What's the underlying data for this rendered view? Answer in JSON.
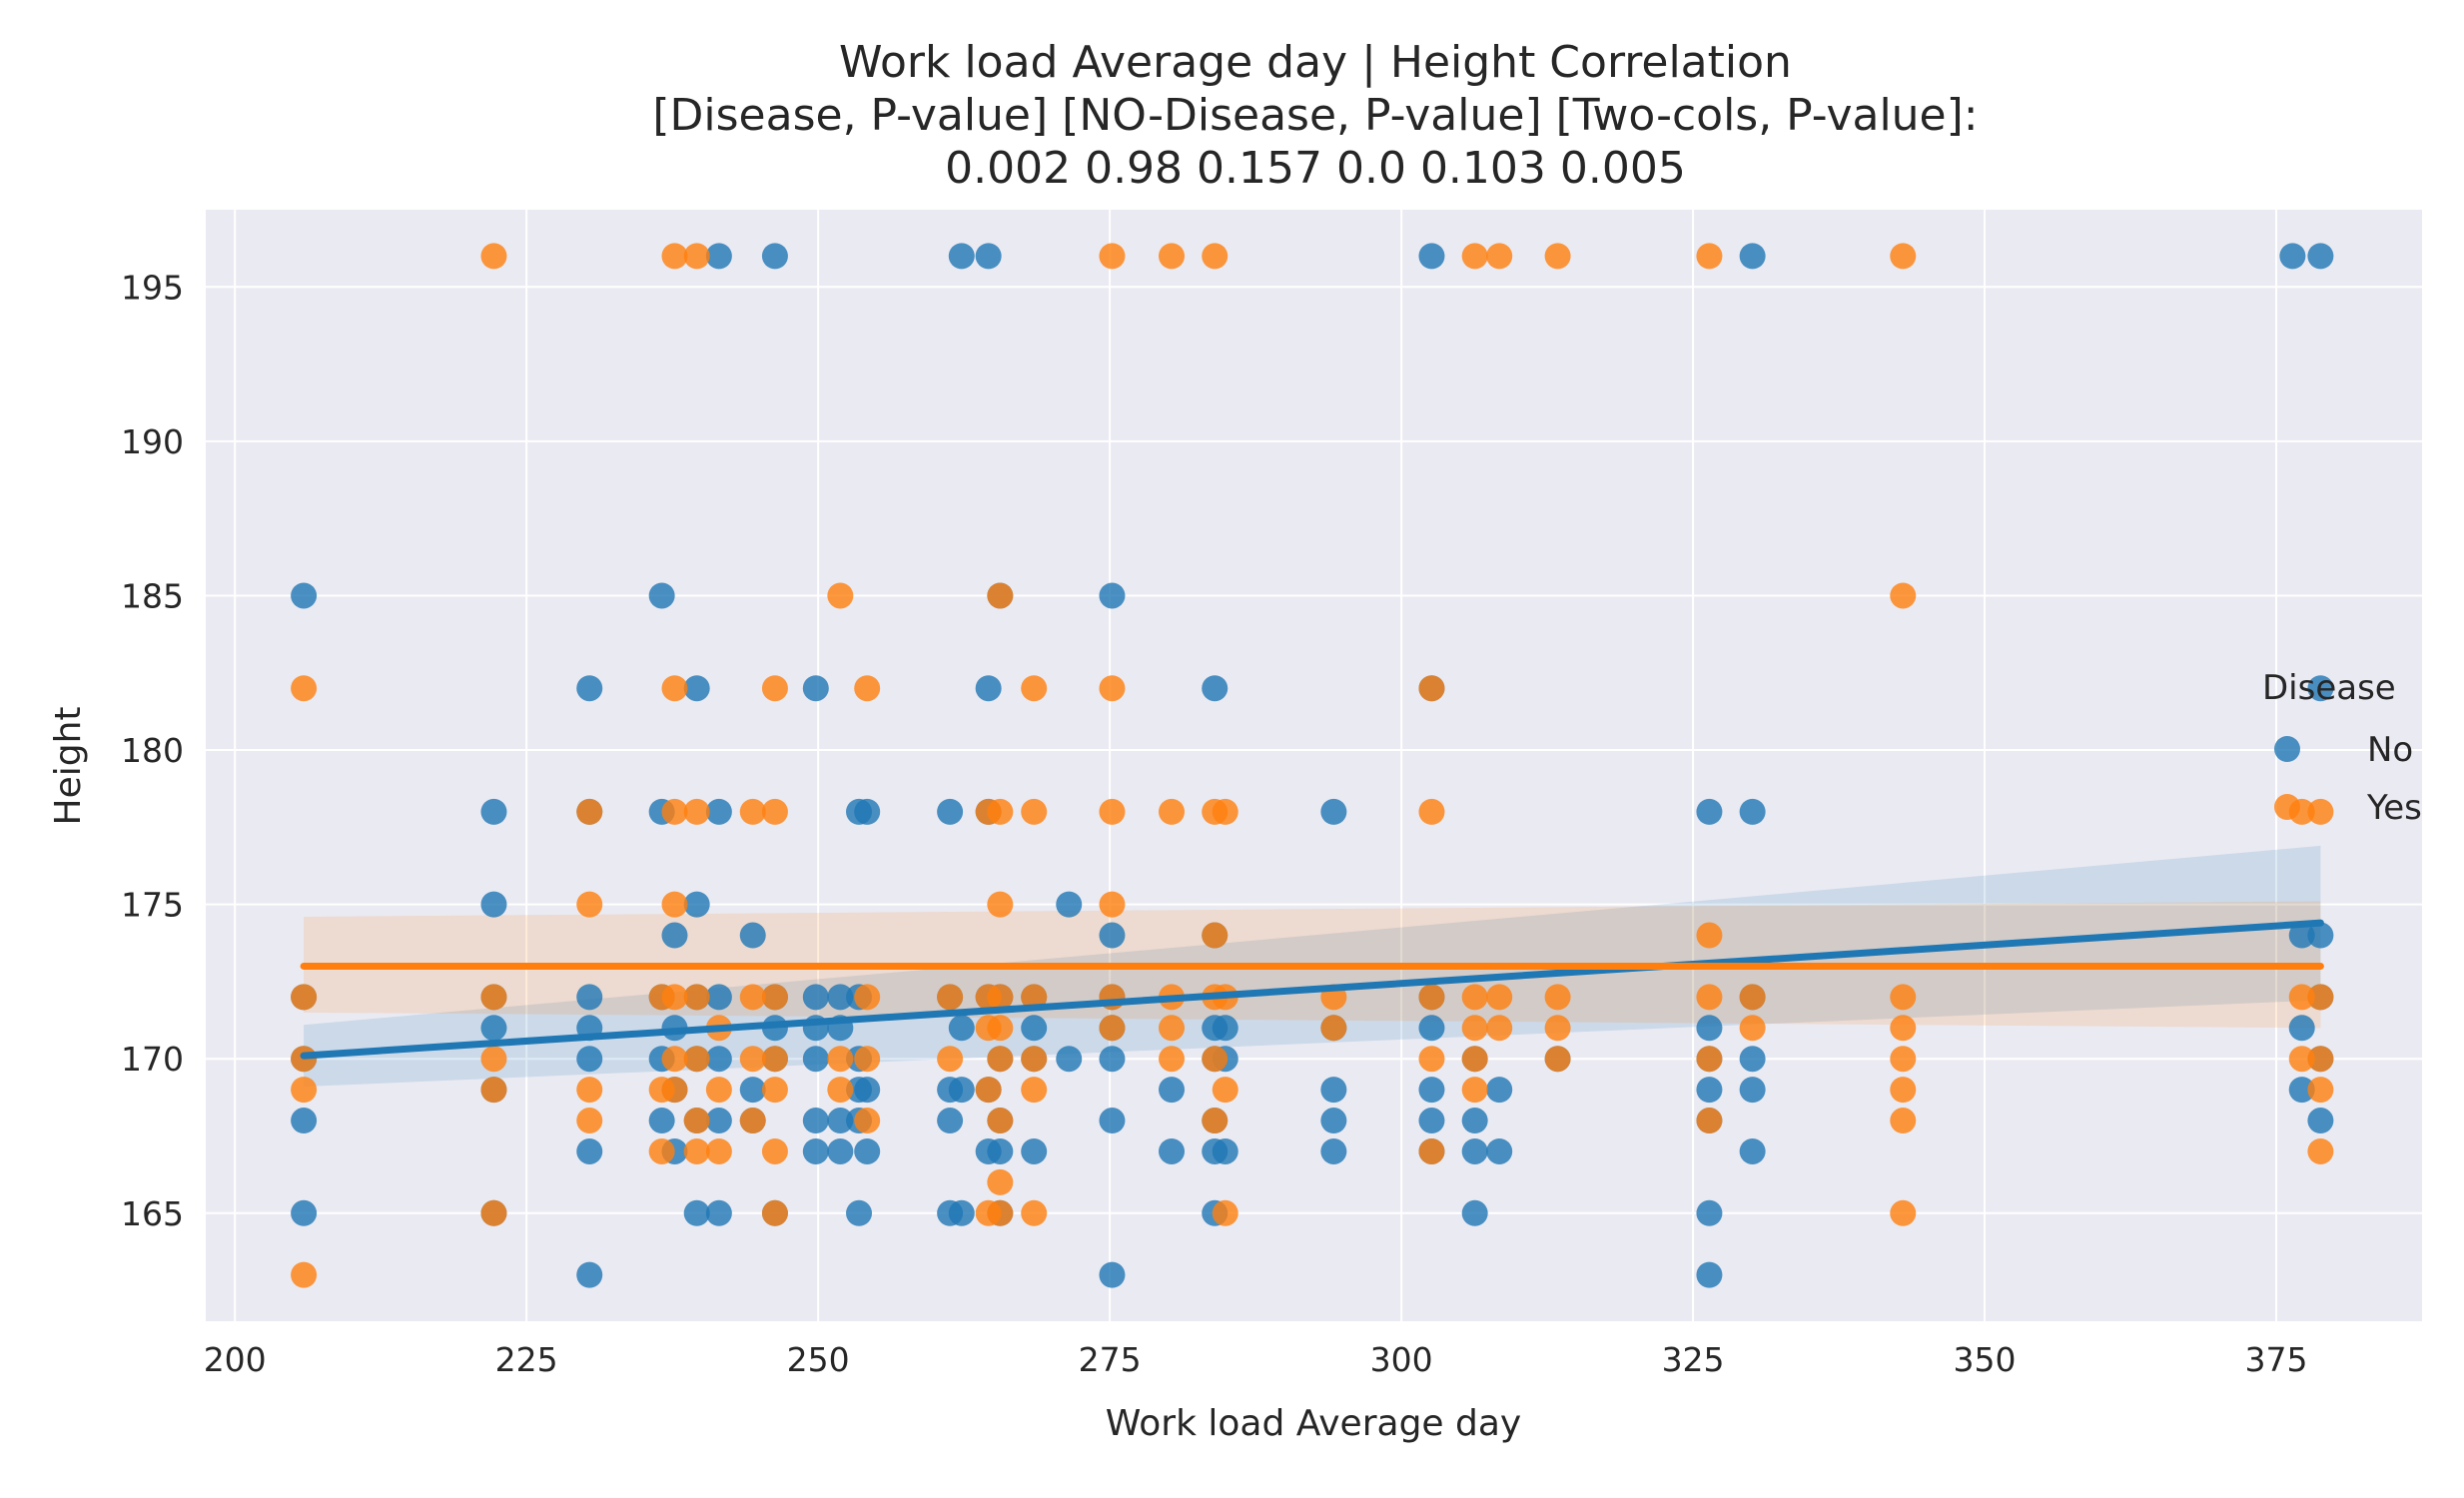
{
  "chart_data": {
    "type": "scatter",
    "title_lines": [
      "Work load Average day | Height    Correlation",
      "[Disease,        P-value]    [NO-Disease,      P-value]   [Two-cols,  P-value]:",
      "0.002                 0.98                 0.157                  0.0             0.103             0.005"
    ],
    "xlabel": "Work load Average day",
    "ylabel": "Height",
    "xlim": [
      197.5,
      387.5
    ],
    "ylim": [
      161.5,
      197.5
    ],
    "xticks": [
      200,
      225,
      250,
      275,
      300,
      325,
      350,
      375
    ],
    "yticks": [
      165,
      170,
      175,
      180,
      185,
      190,
      195
    ],
    "grid": true,
    "legend": {
      "title": "Disease",
      "position": "right",
      "entries": [
        "No",
        "Yes"
      ]
    },
    "colors": {
      "No": "#1f77b4",
      "Yes": "#ff7f0e",
      "background": "#eaeaf2",
      "grid": "#ffffff"
    },
    "series": [
      {
        "name": "No",
        "color": "#1f77b4",
        "points": [
          [
            205.9,
            185
          ],
          [
            205.9,
            172
          ],
          [
            205.9,
            170
          ],
          [
            205.9,
            168
          ],
          [
            205.9,
            165
          ],
          [
            222.2,
            178
          ],
          [
            222.2,
            175
          ],
          [
            222.2,
            172
          ],
          [
            222.2,
            171
          ],
          [
            222.2,
            169
          ],
          [
            222.2,
            165
          ],
          [
            230.4,
            182
          ],
          [
            230.4,
            178
          ],
          [
            230.4,
            172
          ],
          [
            230.4,
            171
          ],
          [
            230.4,
            170
          ],
          [
            230.4,
            167
          ],
          [
            230.4,
            163
          ],
          [
            236.6,
            185
          ],
          [
            236.6,
            178
          ],
          [
            236.6,
            172
          ],
          [
            236.6,
            170
          ],
          [
            236.6,
            168
          ],
          [
            237.7,
            174
          ],
          [
            237.7,
            171
          ],
          [
            237.7,
            169
          ],
          [
            237.7,
            167
          ],
          [
            239.6,
            182
          ],
          [
            239.6,
            175
          ],
          [
            239.6,
            172
          ],
          [
            239.6,
            170
          ],
          [
            239.6,
            168
          ],
          [
            239.6,
            165
          ],
          [
            241.5,
            196
          ],
          [
            241.5,
            178
          ],
          [
            241.5,
            172
          ],
          [
            241.5,
            170
          ],
          [
            241.5,
            168
          ],
          [
            241.5,
            165
          ],
          [
            244.4,
            174
          ],
          [
            244.4,
            169
          ],
          [
            244.4,
            168
          ],
          [
            246.3,
            196
          ],
          [
            246.3,
            172
          ],
          [
            246.3,
            171
          ],
          [
            246.3,
            170
          ],
          [
            246.3,
            165
          ],
          [
            249.8,
            182
          ],
          [
            249.8,
            172
          ],
          [
            249.8,
            171
          ],
          [
            249.8,
            170
          ],
          [
            249.8,
            168
          ],
          [
            249.8,
            167
          ],
          [
            251.9,
            172
          ],
          [
            251.9,
            171
          ],
          [
            251.9,
            168
          ],
          [
            251.9,
            167
          ],
          [
            253.5,
            178
          ],
          [
            253.5,
            172
          ],
          [
            253.5,
            170
          ],
          [
            253.5,
            169
          ],
          [
            253.5,
            168
          ],
          [
            253.5,
            165
          ],
          [
            254.2,
            178
          ],
          [
            254.2,
            169
          ],
          [
            254.2,
            167
          ],
          [
            261.3,
            178
          ],
          [
            261.3,
            172
          ],
          [
            261.3,
            169
          ],
          [
            261.3,
            168
          ],
          [
            261.3,
            165
          ],
          [
            262.3,
            196
          ],
          [
            262.3,
            171
          ],
          [
            262.3,
            169
          ],
          [
            262.3,
            165
          ],
          [
            264.6,
            196
          ],
          [
            264.6,
            182
          ],
          [
            264.6,
            178
          ],
          [
            264.6,
            172
          ],
          [
            264.6,
            169
          ],
          [
            264.6,
            167
          ],
          [
            265.6,
            185
          ],
          [
            265.6,
            172
          ],
          [
            265.6,
            170
          ],
          [
            265.6,
            168
          ],
          [
            265.6,
            167
          ],
          [
            265.6,
            165
          ],
          [
            268.5,
            172
          ],
          [
            268.5,
            171
          ],
          [
            268.5,
            170
          ],
          [
            268.5,
            167
          ],
          [
            271.5,
            175
          ],
          [
            271.5,
            170
          ],
          [
            275.2,
            185
          ],
          [
            275.2,
            174
          ],
          [
            275.2,
            172
          ],
          [
            275.2,
            171
          ],
          [
            275.2,
            170
          ],
          [
            275.2,
            168
          ],
          [
            275.2,
            163
          ],
          [
            280.3,
            169
          ],
          [
            280.3,
            167
          ],
          [
            284.0,
            182
          ],
          [
            284.0,
            174
          ],
          [
            284.0,
            171
          ],
          [
            284.0,
            170
          ],
          [
            284.0,
            168
          ],
          [
            284.0,
            167
          ],
          [
            284.0,
            165
          ],
          [
            284.9,
            171
          ],
          [
            284.9,
            170
          ],
          [
            284.9,
            167
          ],
          [
            294.2,
            178
          ],
          [
            294.2,
            171
          ],
          [
            294.2,
            169
          ],
          [
            294.2,
            168
          ],
          [
            294.2,
            167
          ],
          [
            302.6,
            196
          ],
          [
            302.6,
            182
          ],
          [
            302.6,
            172
          ],
          [
            302.6,
            171
          ],
          [
            302.6,
            169
          ],
          [
            302.6,
            168
          ],
          [
            302.6,
            167
          ],
          [
            306.3,
            170
          ],
          [
            306.3,
            168
          ],
          [
            306.3,
            167
          ],
          [
            306.3,
            165
          ],
          [
            308.4,
            169
          ],
          [
            308.4,
            167
          ],
          [
            313.4,
            170
          ],
          [
            326.4,
            178
          ],
          [
            326.4,
            171
          ],
          [
            326.4,
            170
          ],
          [
            326.4,
            169
          ],
          [
            326.4,
            168
          ],
          [
            326.4,
            165
          ],
          [
            326.4,
            163
          ],
          [
            330.1,
            196
          ],
          [
            330.1,
            178
          ],
          [
            330.1,
            172
          ],
          [
            330.1,
            170
          ],
          [
            330.1,
            169
          ],
          [
            330.1,
            167
          ],
          [
            376.4,
            196
          ],
          [
            377.2,
            174
          ],
          [
            377.2,
            171
          ],
          [
            377.2,
            169
          ],
          [
            378.8,
            196
          ],
          [
            378.8,
            182
          ],
          [
            378.8,
            174
          ],
          [
            378.8,
            172
          ],
          [
            378.8,
            170
          ],
          [
            378.8,
            168
          ]
        ]
      },
      {
        "name": "Yes",
        "color": "#ff7f0e",
        "points": [
          [
            205.9,
            182
          ],
          [
            205.9,
            172
          ],
          [
            205.9,
            170
          ],
          [
            205.9,
            169
          ],
          [
            205.9,
            163
          ],
          [
            222.2,
            196
          ],
          [
            222.2,
            172
          ],
          [
            222.2,
            170
          ],
          [
            222.2,
            169
          ],
          [
            222.2,
            165
          ],
          [
            230.4,
            178
          ],
          [
            230.4,
            175
          ],
          [
            230.4,
            169
          ],
          [
            230.4,
            168
          ],
          [
            236.6,
            172
          ],
          [
            236.6,
            169
          ],
          [
            236.6,
            167
          ],
          [
            237.7,
            196
          ],
          [
            237.7,
            182
          ],
          [
            237.7,
            178
          ],
          [
            237.7,
            175
          ],
          [
            237.7,
            172
          ],
          [
            237.7,
            170
          ],
          [
            237.7,
            169
          ],
          [
            239.6,
            196
          ],
          [
            239.6,
            178
          ],
          [
            239.6,
            172
          ],
          [
            239.6,
            170
          ],
          [
            239.6,
            168
          ],
          [
            239.6,
            167
          ],
          [
            241.5,
            171
          ],
          [
            241.5,
            169
          ],
          [
            241.5,
            167
          ],
          [
            244.4,
            178
          ],
          [
            244.4,
            172
          ],
          [
            244.4,
            170
          ],
          [
            244.4,
            168
          ],
          [
            246.3,
            182
          ],
          [
            246.3,
            178
          ],
          [
            246.3,
            172
          ],
          [
            246.3,
            170
          ],
          [
            246.3,
            169
          ],
          [
            246.3,
            167
          ],
          [
            246.3,
            165
          ],
          [
            251.9,
            185
          ],
          [
            251.9,
            170
          ],
          [
            251.9,
            169
          ],
          [
            254.2,
            182
          ],
          [
            254.2,
            172
          ],
          [
            254.2,
            170
          ],
          [
            254.2,
            168
          ],
          [
            261.3,
            172
          ],
          [
            261.3,
            170
          ],
          [
            264.6,
            178
          ],
          [
            264.6,
            172
          ],
          [
            264.6,
            171
          ],
          [
            264.6,
            169
          ],
          [
            264.6,
            165
          ],
          [
            265.6,
            185
          ],
          [
            265.6,
            178
          ],
          [
            265.6,
            175
          ],
          [
            265.6,
            172
          ],
          [
            265.6,
            171
          ],
          [
            265.6,
            170
          ],
          [
            265.6,
            168
          ],
          [
            265.6,
            166
          ],
          [
            265.6,
            165
          ],
          [
            268.5,
            182
          ],
          [
            268.5,
            178
          ],
          [
            268.5,
            172
          ],
          [
            268.5,
            170
          ],
          [
            268.5,
            169
          ],
          [
            268.5,
            165
          ],
          [
            275.2,
            196
          ],
          [
            275.2,
            182
          ],
          [
            275.2,
            178
          ],
          [
            275.2,
            175
          ],
          [
            275.2,
            172
          ],
          [
            275.2,
            171
          ],
          [
            280.3,
            196
          ],
          [
            280.3,
            178
          ],
          [
            280.3,
            172
          ],
          [
            280.3,
            171
          ],
          [
            280.3,
            170
          ],
          [
            284.0,
            196
          ],
          [
            284.0,
            178
          ],
          [
            284.0,
            174
          ],
          [
            284.0,
            172
          ],
          [
            284.0,
            170
          ],
          [
            284.0,
            168
          ],
          [
            284.9,
            178
          ],
          [
            284.9,
            172
          ],
          [
            284.9,
            169
          ],
          [
            284.9,
            165
          ],
          [
            294.2,
            172
          ],
          [
            294.2,
            171
          ],
          [
            302.6,
            182
          ],
          [
            302.6,
            178
          ],
          [
            302.6,
            172
          ],
          [
            302.6,
            170
          ],
          [
            302.6,
            167
          ],
          [
            306.3,
            196
          ],
          [
            306.3,
            172
          ],
          [
            306.3,
            171
          ],
          [
            306.3,
            170
          ],
          [
            306.3,
            169
          ],
          [
            308.4,
            196
          ],
          [
            308.4,
            172
          ],
          [
            308.4,
            171
          ],
          [
            313.4,
            196
          ],
          [
            313.4,
            172
          ],
          [
            313.4,
            171
          ],
          [
            313.4,
            170
          ],
          [
            326.4,
            196
          ],
          [
            326.4,
            174
          ],
          [
            326.4,
            172
          ],
          [
            326.4,
            170
          ],
          [
            326.4,
            168
          ],
          [
            330.1,
            172
          ],
          [
            330.1,
            171
          ],
          [
            343.0,
            196
          ],
          [
            343.0,
            185
          ],
          [
            343.0,
            172
          ],
          [
            343.0,
            171
          ],
          [
            343.0,
            170
          ],
          [
            343.0,
            169
          ],
          [
            343.0,
            168
          ],
          [
            343.0,
            165
          ],
          [
            377.2,
            178
          ],
          [
            377.2,
            172
          ],
          [
            377.2,
            170
          ],
          [
            378.8,
            178
          ],
          [
            378.8,
            172
          ],
          [
            378.8,
            170
          ],
          [
            378.8,
            169
          ],
          [
            378.8,
            167
          ]
        ]
      }
    ],
    "regression": [
      {
        "name": "No",
        "color": "#1f77b4",
        "x": [
          205.9,
          378.8
        ],
        "y": [
          170.1,
          174.4
        ],
        "ci_low": [
          169.1,
          171.9
        ],
        "ci_high": [
          171.1,
          176.9
        ]
      },
      {
        "name": "Yes",
        "color": "#ff7f0e",
        "x": [
          205.9,
          378.8
        ],
        "y": [
          173.0,
          173.0
        ],
        "ci_low": [
          171.5,
          171.0
        ],
        "ci_high": [
          174.6,
          175.1
        ]
      }
    ]
  }
}
